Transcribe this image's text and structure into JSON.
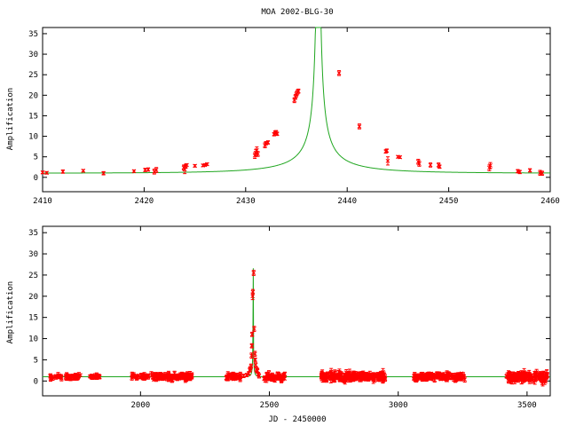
{
  "figure_title": "MOA 2002-BLG-30",
  "colors": {
    "model": "#1fa61f",
    "data": "#ff0000",
    "axes": "#000000"
  },
  "chart_data": [
    {
      "type": "scatter",
      "title": "MOA 2002-BLG-30",
      "xlabel": "",
      "ylabel": "Amplification",
      "xlim": [
        2410,
        2460
      ],
      "ylim": [
        -3.5,
        36.5
      ],
      "xticks": [
        2410,
        2420,
        2430,
        2440,
        2450,
        2460
      ],
      "yticks": [
        0,
        5,
        10,
        15,
        20,
        25,
        30,
        35
      ],
      "model": {
        "t0": 2437.15,
        "u0": 0.0118,
        "tE": 11.2,
        "baseline": 1.0
      },
      "points": [
        {
          "x": 2410.0,
          "y": 1.2,
          "e": 0.3
        },
        {
          "x": 2410.4,
          "y": 1.1,
          "e": 0.3
        },
        {
          "x": 2412.0,
          "y": 1.4,
          "e": 0.4
        },
        {
          "x": 2414.0,
          "y": 1.6,
          "e": 0.3
        },
        {
          "x": 2416.0,
          "y": 1.0,
          "e": 0.4
        },
        {
          "x": 2419.0,
          "y": 1.5,
          "e": 0.3
        },
        {
          "x": 2420.1,
          "y": 1.8,
          "e": 0.4
        },
        {
          "x": 2420.4,
          "y": 1.9,
          "e": 0.4
        },
        {
          "x": 2421.0,
          "y": 1.4,
          "e": 0.6
        },
        {
          "x": 2421.2,
          "y": 1.8,
          "e": 0.6
        },
        {
          "x": 2423.9,
          "y": 2.4,
          "e": 0.6
        },
        {
          "x": 2424.0,
          "y": 1.9,
          "e": 1.0
        },
        {
          "x": 2424.1,
          "y": 2.7,
          "e": 0.5
        },
        {
          "x": 2424.2,
          "y": 3.0,
          "e": 0.3
        },
        {
          "x": 2425.0,
          "y": 2.8,
          "e": 0.3
        },
        {
          "x": 2425.8,
          "y": 2.9,
          "e": 0.3
        },
        {
          "x": 2426.0,
          "y": 3.0,
          "e": 0.3
        },
        {
          "x": 2426.2,
          "y": 3.2,
          "e": 0.3
        },
        {
          "x": 2430.9,
          "y": 5.3,
          "e": 0.7
        },
        {
          "x": 2431.0,
          "y": 6.0,
          "e": 0.8
        },
        {
          "x": 2431.1,
          "y": 6.6,
          "e": 0.8
        },
        {
          "x": 2431.2,
          "y": 5.7,
          "e": 0.6
        },
        {
          "x": 2431.9,
          "y": 7.8,
          "e": 0.6
        },
        {
          "x": 2432.0,
          "y": 8.3,
          "e": 0.4
        },
        {
          "x": 2432.2,
          "y": 8.5,
          "e": 0.4
        },
        {
          "x": 2432.8,
          "y": 10.5,
          "e": 0.4
        },
        {
          "x": 2432.9,
          "y": 10.9,
          "e": 0.4
        },
        {
          "x": 2433.0,
          "y": 11.0,
          "e": 0.4
        },
        {
          "x": 2433.1,
          "y": 10.6,
          "e": 0.4
        },
        {
          "x": 2434.8,
          "y": 18.8,
          "e": 0.6
        },
        {
          "x": 2434.9,
          "y": 19.6,
          "e": 0.6
        },
        {
          "x": 2435.0,
          "y": 20.2,
          "e": 0.6
        },
        {
          "x": 2435.1,
          "y": 20.7,
          "e": 0.6
        },
        {
          "x": 2435.2,
          "y": 21.0,
          "e": 0.5
        },
        {
          "x": 2439.2,
          "y": 25.4,
          "e": 0.6
        },
        {
          "x": 2441.2,
          "y": 12.4,
          "e": 0.6
        },
        {
          "x": 2443.8,
          "y": 6.3,
          "e": 0.4
        },
        {
          "x": 2443.9,
          "y": 6.5,
          "e": 0.4
        },
        {
          "x": 2444.0,
          "y": 4.0,
          "e": 1.0
        },
        {
          "x": 2445.0,
          "y": 5.0,
          "e": 0.3
        },
        {
          "x": 2445.2,
          "y": 4.9,
          "e": 0.3
        },
        {
          "x": 2447.0,
          "y": 3.8,
          "e": 0.6
        },
        {
          "x": 2447.1,
          "y": 3.3,
          "e": 0.6
        },
        {
          "x": 2448.2,
          "y": 3.0,
          "e": 0.5
        },
        {
          "x": 2449.0,
          "y": 3.0,
          "e": 0.5
        },
        {
          "x": 2449.1,
          "y": 2.6,
          "e": 0.4
        },
        {
          "x": 2454.0,
          "y": 2.3,
          "e": 0.7
        },
        {
          "x": 2454.1,
          "y": 2.9,
          "e": 0.7
        },
        {
          "x": 2456.8,
          "y": 1.5,
          "e": 0.4
        },
        {
          "x": 2457.0,
          "y": 1.3,
          "e": 0.4
        },
        {
          "x": 2458.0,
          "y": 1.7,
          "e": 0.4
        },
        {
          "x": 2459.0,
          "y": 1.1,
          "e": 0.6
        },
        {
          "x": 2459.2,
          "y": 1.0,
          "e": 0.5
        }
      ]
    },
    {
      "type": "scatter",
      "title": "",
      "xlabel": "JD - 2450000",
      "ylabel": "Amplification",
      "xlim": [
        1620,
        3590
      ],
      "ylim": [
        -3.5,
        36.5
      ],
      "xticks": [
        2000,
        2500,
        3000,
        3500
      ],
      "yticks": [
        0,
        5,
        10,
        15,
        20,
        25,
        30,
        35
      ],
      "model": {
        "t0": 2437.15,
        "u0": 0.0118,
        "tE": 11.2,
        "baseline": 1.0
      },
      "seasons": [
        {
          "start": 1650,
          "end": 1770,
          "n": 50,
          "scatter": 0.35,
          "e": 0.45
        },
        {
          "start": 1800,
          "end": 1850,
          "n": 18,
          "scatter": 0.3,
          "e": 0.4
        },
        {
          "start": 1960,
          "end": 2030,
          "n": 28,
          "scatter": 0.35,
          "e": 0.45
        },
        {
          "start": 2040,
          "end": 2200,
          "n": 110,
          "scatter": 0.45,
          "e": 0.5
        },
        {
          "start": 2330,
          "end": 2390,
          "n": 35,
          "scatter": 0.35,
          "e": 0.45
        },
        {
          "start": 2480,
          "end": 2560,
          "n": 55,
          "scatter": 0.5,
          "e": 0.5
        },
        {
          "start": 2700,
          "end": 2950,
          "n": 200,
          "scatter": 0.55,
          "e": 0.6
        },
        {
          "start": 3060,
          "end": 3260,
          "n": 140,
          "scatter": 0.45,
          "e": 0.5
        },
        {
          "start": 3420,
          "end": 3580,
          "n": 120,
          "scatter": 0.6,
          "e": 0.7
        }
      ],
      "event_points": [
        {
          "x": 2400,
          "y": 1.2,
          "e": 0.4
        },
        {
          "x": 2412,
          "y": 1.4,
          "e": 0.4
        },
        {
          "x": 2420,
          "y": 1.8,
          "e": 0.4
        },
        {
          "x": 2424,
          "y": 2.6,
          "e": 0.5
        },
        {
          "x": 2426,
          "y": 3.0,
          "e": 0.4
        },
        {
          "x": 2429,
          "y": 3.5,
          "e": 0.5
        },
        {
          "x": 2431,
          "y": 6.0,
          "e": 0.6
        },
        {
          "x": 2432,
          "y": 8.3,
          "e": 0.5
        },
        {
          "x": 2433,
          "y": 11.0,
          "e": 0.5
        },
        {
          "x": 2435,
          "y": 20.0,
          "e": 0.8
        },
        {
          "x": 2436,
          "y": 21.0,
          "e": 0.6
        },
        {
          "x": 2439,
          "y": 25.5,
          "e": 0.6
        },
        {
          "x": 2441,
          "y": 12.3,
          "e": 0.6
        },
        {
          "x": 2444,
          "y": 6.4,
          "e": 0.6
        },
        {
          "x": 2445,
          "y": 5.0,
          "e": 0.4
        },
        {
          "x": 2447,
          "y": 3.8,
          "e": 0.5
        },
        {
          "x": 2449,
          "y": 2.8,
          "e": 0.5
        },
        {
          "x": 2452,
          "y": 2.5,
          "e": 0.5
        },
        {
          "x": 2454,
          "y": 2.4,
          "e": 0.6
        },
        {
          "x": 2457,
          "y": 1.6,
          "e": 0.4
        },
        {
          "x": 2460,
          "y": 1.2,
          "e": 0.5
        }
      ]
    }
  ]
}
